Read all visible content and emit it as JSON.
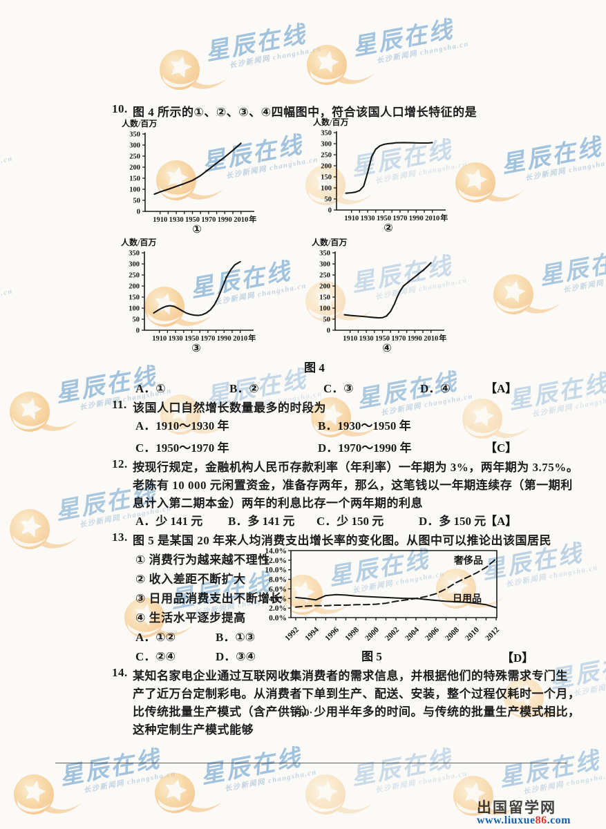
{
  "page_number": "·50·",
  "watermark": {
    "brand": "星辰在线",
    "subtitle": "长沙新闻网 changsha.cn",
    "brand_color": "#4a90cc",
    "logo_color": "#f5a33c"
  },
  "footer": {
    "site_name": "出国留学网",
    "url_prefix": "www.liuxue",
    "url_number": "86",
    "url_suffix": ".com"
  },
  "questions": {
    "q10": {
      "number": "10.",
      "stem": "图 4 所示的①、②、③、④四幅图中，符合该国人口增长特征的是",
      "figure_caption": "图 4",
      "options": {
        "a": "A．①",
        "b": "B．②",
        "c": "C．③",
        "d": "D．④"
      },
      "answer": "【A】"
    },
    "q11": {
      "number": "11.",
      "stem": "该国人口自然增长数量最多的时段为",
      "options": {
        "a": "A．1910～1930 年",
        "b": "B．1930～1950 年",
        "c": "C．1950～1970 年",
        "d": "D．1970～1990 年"
      },
      "answer": "【C】"
    },
    "q12": {
      "number": "12.",
      "line1": "按现行规定，金融机构人民币存款利率（年利率）一年期为 3%，两年期为 3.75%。",
      "line2": "老陈有 10 000 元闲置资金，准备存两年，那么，这笔钱以一年期连续存（第一期利",
      "line3": "息计入第二期本金）两年的利息比存一个两年期的利息",
      "options": {
        "a": "A．少 141 元",
        "b": "B．多 141 元",
        "c": "C．少 150 元",
        "d": "D．多 150 元"
      },
      "answer": "【A】"
    },
    "q13": {
      "number": "13.",
      "stem": "图 5 是某国 20 年来人均消费支出增长率的变化图。从图中可以推论出该国居民",
      "statements": {
        "s1": "① 消费行为越来越不理性",
        "s2": "② 收入差距不断扩大",
        "s3": "③ 日用品消费支出不断增长",
        "s4": "④ 生活水平逐步提高"
      },
      "options": {
        "a": "A．①②",
        "b": "B．①③",
        "c": "C．②④",
        "d": "D．③④"
      },
      "figure_caption": "图 5",
      "answer": "【D】"
    },
    "q14": {
      "number": "14.",
      "line1": "某知名家电企业通过互联网收集消费者的需求信息，并根据他们的特殊需求专门生",
      "line2": "产了近万台定制彩电。从消费者下单到生产、配送、安装，整个过程仅耗时一个月，",
      "line3": "比传统批量生产模式（含产供销）少用半年多的时间。与传统的批量生产模式相比，",
      "line4": "这种定制生产模式能够"
    }
  },
  "chart_data": [
    {
      "id": "fig4-1",
      "type": "line",
      "label": "①",
      "ylabel": "人数/百万",
      "xunit": "年",
      "ylim": [
        0,
        350
      ],
      "yticks": [
        0,
        50,
        100,
        150,
        200,
        250,
        300,
        350
      ],
      "xticks": [
        1910,
        1930,
        1950,
        1970,
        1990,
        2010
      ],
      "points": [
        [
          1903,
          78
        ],
        [
          1910,
          88
        ],
        [
          1920,
          100
        ],
        [
          1930,
          113
        ],
        [
          1940,
          126
        ],
        [
          1950,
          140
        ],
        [
          1960,
          162
        ],
        [
          1970,
          190
        ],
        [
          1980,
          218
        ],
        [
          1990,
          246
        ],
        [
          2000,
          276
        ],
        [
          2010,
          308
        ]
      ]
    },
    {
      "id": "fig4-2",
      "type": "line",
      "label": "②",
      "ylabel": "人数/百万",
      "xunit": "年",
      "ylim": [
        0,
        350
      ],
      "yticks": [
        0,
        50,
        100,
        150,
        200,
        250,
        300,
        350
      ],
      "xticks": [
        1910,
        1930,
        1950,
        1970,
        1990,
        2010
      ],
      "points": [
        [
          1903,
          76
        ],
        [
          1910,
          78
        ],
        [
          1915,
          81
        ],
        [
          1920,
          88
        ],
        [
          1925,
          108
        ],
        [
          1930,
          170
        ],
        [
          1935,
          242
        ],
        [
          1940,
          275
        ],
        [
          1945,
          290
        ],
        [
          1950,
          297
        ],
        [
          1955,
          300
        ],
        [
          1960,
          302
        ],
        [
          1965,
          304
        ],
        [
          1975,
          305
        ],
        [
          1985,
          304
        ],
        [
          1995,
          303
        ],
        [
          2005,
          303
        ],
        [
          2010,
          305
        ]
      ]
    },
    {
      "id": "fig4-3",
      "type": "line",
      "label": "③",
      "ylabel": "人数/百万",
      "xunit": "年",
      "ylim": [
        0,
        350
      ],
      "yticks": [
        0,
        50,
        100,
        150,
        200,
        250,
        300,
        350
      ],
      "xticks": [
        1910,
        1930,
        1950,
        1970,
        1990,
        2010
      ],
      "points": [
        [
          1903,
          78
        ],
        [
          1908,
          90
        ],
        [
          1913,
          100
        ],
        [
          1918,
          108
        ],
        [
          1923,
          111
        ],
        [
          1928,
          108
        ],
        [
          1933,
          99
        ],
        [
          1938,
          88
        ],
        [
          1943,
          78
        ],
        [
          1948,
          72
        ],
        [
          1953,
          68
        ],
        [
          1958,
          67
        ],
        [
          1963,
          70
        ],
        [
          1968,
          78
        ],
        [
          1973,
          92
        ],
        [
          1978,
          115
        ],
        [
          1983,
          150
        ],
        [
          1988,
          195
        ],
        [
          1993,
          240
        ],
        [
          1998,
          272
        ],
        [
          2003,
          295
        ],
        [
          2008,
          306
        ],
        [
          2010,
          310
        ]
      ]
    },
    {
      "id": "fig4-4",
      "type": "line",
      "label": "④",
      "ylabel": "人数/百万",
      "xunit": "年",
      "ylim": [
        0,
        350
      ],
      "yticks": [
        0,
        50,
        100,
        150,
        200,
        250,
        300,
        350
      ],
      "xticks": [
        1910,
        1930,
        1950,
        1970,
        1990,
        2010
      ],
      "points": [
        [
          1903,
          70
        ],
        [
          1910,
          67
        ],
        [
          1920,
          64
        ],
        [
          1930,
          61
        ],
        [
          1938,
          58
        ],
        [
          1945,
          56
        ],
        [
          1950,
          57
        ],
        [
          1955,
          64
        ],
        [
          1960,
          85
        ],
        [
          1965,
          120
        ],
        [
          1968,
          148
        ],
        [
          1972,
          178
        ],
        [
          1976,
          200
        ],
        [
          1980,
          212
        ],
        [
          1985,
          227
        ],
        [
          1990,
          241
        ],
        [
          1995,
          256
        ],
        [
          2000,
          270
        ],
        [
          2005,
          287
        ],
        [
          2010,
          305
        ]
      ]
    },
    {
      "id": "fig5",
      "type": "line",
      "title": "图 5",
      "ylim": [
        0,
        14
      ],
      "ytick_step": 2,
      "ytick_suffix": "%",
      "x": [
        1992,
        1993,
        1994,
        1995,
        1996,
        1997,
        1998,
        1999,
        2000,
        2001,
        2002,
        2003,
        2004,
        2005,
        2006,
        2007,
        2008,
        2009,
        2010,
        2011,
        2012
      ],
      "xtick_labels": [
        "1992",
        "1994",
        "1996",
        "1998",
        "2000",
        "2002",
        "2004",
        "2006",
        "2008",
        "2010",
        "2012"
      ],
      "series": [
        {
          "name": "日用品",
          "line_style": "solid",
          "values": [
            4.2,
            4.0,
            3.7,
            4.6,
            4.8,
            4.7,
            4.5,
            4.4,
            4.3,
            4.2,
            4.1,
            4.0,
            4.0,
            3.8,
            3.6,
            3.4,
            3.3,
            3.2,
            3.0,
            2.7,
            2.1
          ]
        },
        {
          "name": "奢侈品",
          "line_style": "dashed",
          "values": [
            2.2,
            2.4,
            2.5,
            2.5,
            2.6,
            2.6,
            2.7,
            2.7,
            2.8,
            3.0,
            3.4,
            3.7,
            4.0,
            4.4,
            5.0,
            6.0,
            7.3,
            8.3,
            9.3,
            10.5,
            12.3
          ]
        }
      ]
    }
  ]
}
